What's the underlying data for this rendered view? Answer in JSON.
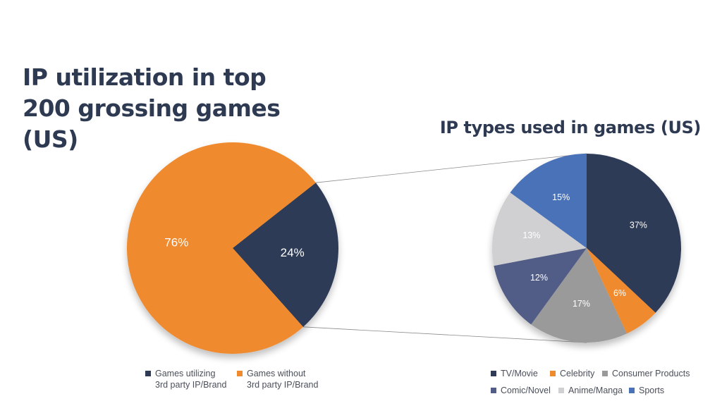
{
  "main_title": "IP utilization in top 200 grossing games (US)",
  "right_title": "IP types used in games (US)",
  "colors": {
    "title": "#2e3a52",
    "connector": "#8c8c8c"
  },
  "chart_data": [
    {
      "type": "pie",
      "title": "IP utilization in top 200 grossing games (US)",
      "categories": [
        "Games utilizing 3rd party IP/Brand",
        "Games without 3rd party IP/Brand"
      ],
      "values": [
        24,
        76
      ],
      "labels": [
        "24%",
        "76%"
      ],
      "colors": [
        "#2e3a56",
        "#ef8a2f"
      ],
      "legend": [
        {
          "label": "Games utilizing\n3rd party IP/Brand",
          "color": "#2e3a56"
        },
        {
          "label": "Games without\n3rd party IP/Brand",
          "color": "#ef8a2f"
        }
      ],
      "legend_position": "bottom"
    },
    {
      "type": "pie",
      "title": "IP types used in games (US)",
      "categories": [
        "TV/Movie",
        "Celebrity",
        "Consumer Products",
        "Comic/Novel",
        "Anime/Manga",
        "Sports"
      ],
      "values": [
        37,
        6,
        17,
        12,
        13,
        15
      ],
      "labels": [
        "37%",
        "6%",
        "17%",
        "12%",
        "13%",
        "15%"
      ],
      "colors": [
        "#2e3a56",
        "#ef8a2f",
        "#9a9a9a",
        "#515d86",
        "#d0d0d3",
        "#4a72b8"
      ],
      "legend": [
        {
          "label": "TV/Movie",
          "color": "#2e3a56"
        },
        {
          "label": "Celebrity",
          "color": "#ef8a2f"
        },
        {
          "label": "Consumer Products",
          "color": "#9a9a9a"
        },
        {
          "label": "Comic/Novel",
          "color": "#515d86"
        },
        {
          "label": "Anime/Manga",
          "color": "#d0d0d3"
        },
        {
          "label": "Sports",
          "color": "#4a72b8"
        }
      ],
      "legend_position": "bottom"
    }
  ]
}
